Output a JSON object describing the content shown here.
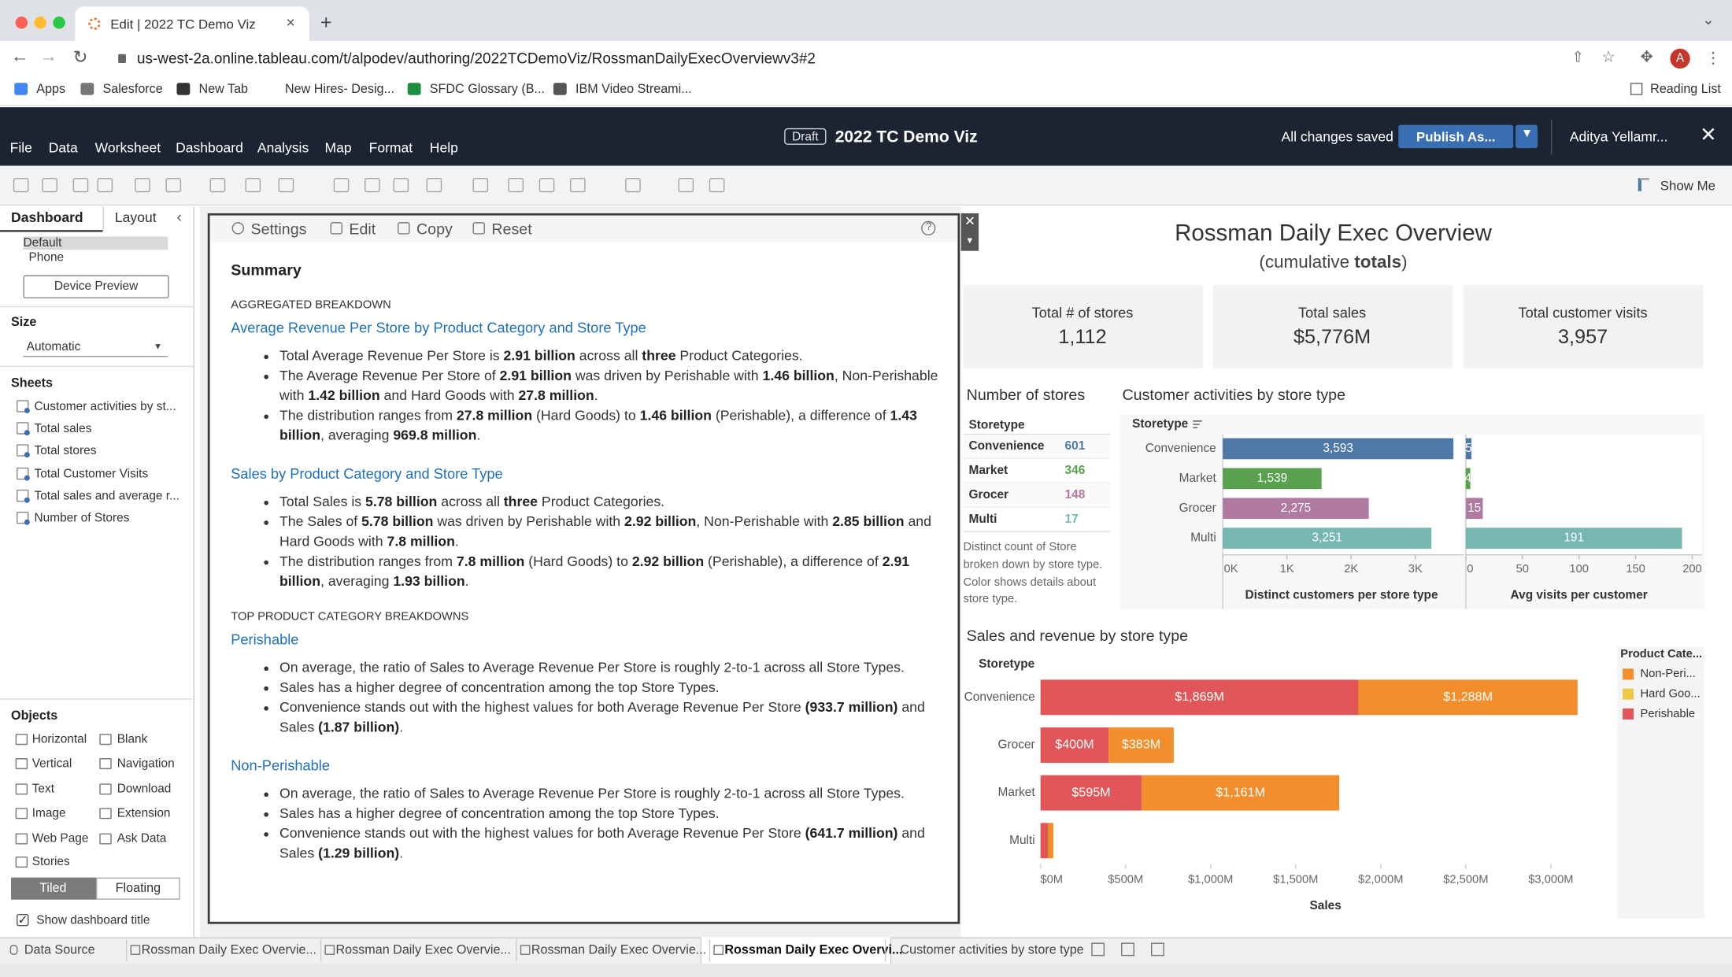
{
  "browser": {
    "tab_title": "Edit | 2022 TC Demo Viz",
    "url": "us-west-2a.online.tableau.com/t/alpodev/authoring/2022TCDemoViz/RossmanDailyExecOverviewv3#2",
    "avatar": "A",
    "bookmarks": [
      "Apps",
      "Salesforce",
      "New Tab",
      "New Hires- Desig...",
      "SFDC Glossary (B...",
      "IBM Video Streami..."
    ],
    "reading_list": "Reading List"
  },
  "app": {
    "menu": [
      "File",
      "Data",
      "Worksheet",
      "Dashboard",
      "Analysis",
      "Map",
      "Format",
      "Help"
    ],
    "badge": "Draft",
    "workbook": "2022 TC Demo Viz",
    "status": "All changes saved",
    "publish": "Publish As...",
    "user": "Aditya Yellamr...",
    "show_me": "Show Me"
  },
  "sidebar": {
    "tabs": [
      "Dashboard",
      "Layout"
    ],
    "devices": [
      "Default",
      "Phone"
    ],
    "device_preview": "Device Preview",
    "size_label": "Size",
    "size_value": "Automatic",
    "sheets_label": "Sheets",
    "sheets": [
      "Customer activities by st...",
      "Total sales",
      "Total stores",
      "Total Customer Visits",
      "Total sales and average r...",
      "Number of Stores"
    ],
    "objects_label": "Objects",
    "objects": [
      "Horizontal",
      "Blank",
      "Vertical",
      "Navigation",
      "Text",
      "Download",
      "Image",
      "Extension",
      "Web Page",
      "Ask Data",
      "Stories"
    ],
    "layout_modes": [
      "Tiled",
      "Floating"
    ],
    "show_title": "Show dashboard title"
  },
  "summary": {
    "actions": [
      "Settings",
      "Edit",
      "Copy",
      "Reset"
    ],
    "title": "Summary",
    "groups": [
      {
        "heading": "AGGREGATED BREAKDOWN",
        "sections": [
          {
            "title": "Average Revenue Per Store by Product Category and Store Type",
            "bullets": [
              [
                "Total Average Revenue Per Store is ",
                "2.91 billion",
                " across all ",
                "three",
                " Product Categories."
              ],
              [
                "The Average Revenue Per Store of ",
                "2.91 billion",
                " was driven by Perishable with ",
                "1.46 billion",
                ", Non-Perishable with ",
                "1.42 billion",
                " and Hard Goods with ",
                "27.8 million",
                "."
              ],
              [
                "The distribution ranges from ",
                "27.8 million",
                " (Hard Goods) to ",
                "1.46 billion",
                " (Perishable), a difference of ",
                "1.43 billion",
                ", averaging ",
                "969.8 million",
                "."
              ]
            ]
          },
          {
            "title": "Sales by Product Category and Store Type",
            "bullets": [
              [
                "Total Sales is ",
                "5.78 billion",
                " across all ",
                "three",
                " Product Categories."
              ],
              [
                "The Sales of ",
                "5.78 billion",
                " was driven by Perishable with ",
                "2.92 billion",
                ", Non-Perishable with ",
                "2.85 billion",
                " and Hard Goods with ",
                "7.8 million",
                "."
              ],
              [
                "The distribution ranges from ",
                "7.8 million",
                " (Hard Goods) to ",
                "2.92 billion",
                " (Perishable), a difference of ",
                "2.91 billion",
                ", averaging ",
                "1.93 billion",
                "."
              ]
            ]
          }
        ]
      },
      {
        "heading": "TOP PRODUCT CATEGORY BREAKDOWNS",
        "sections": [
          {
            "title": "Perishable",
            "bullets": [
              [
                "On average, the ratio of Sales to Average Revenue Per Store is roughly 2-to-1 across all Store Types."
              ],
              [
                "Sales has a higher degree of concentration among the top Store Types."
              ],
              [
                "Convenience stands out with the highest values for both Average Revenue Per Store ",
                "(933.7 million)",
                " and Sales ",
                "(1.87 billion)",
                "."
              ]
            ]
          },
          {
            "title": "Non-Perishable",
            "bullets": [
              [
                "On average, the ratio of Sales to Average Revenue Per Store is roughly 2-to-1 across all Store Types."
              ],
              [
                "Sales has a higher degree of concentration among the top Store Types."
              ],
              [
                "Convenience stands out with the highest values for both Average Revenue Per Store ",
                "(641.7 million)",
                " and Sales ",
                "(1.29 billion)",
                "."
              ]
            ]
          }
        ]
      }
    ]
  },
  "dashboard": {
    "title": "Rossman Daily Exec Overview",
    "subtitle": [
      "(cumulative ",
      "totals",
      ")"
    ],
    "kpis": [
      {
        "label": "Total # of stores",
        "value": "1,112"
      },
      {
        "label": "Total sales",
        "value": "$5,776M"
      },
      {
        "label": "Total customer visits",
        "value": "3,957"
      }
    ],
    "stores_table": {
      "title": "Number of stores",
      "header": "Storetype",
      "rows": [
        [
          "Convenience",
          "601"
        ],
        [
          "Market",
          "346"
        ],
        [
          "Grocer",
          "148"
        ],
        [
          "Multi",
          "17"
        ]
      ],
      "colors": [
        "#4e79a7",
        "#59a14f",
        "#b07aa1",
        "#76b7b2"
      ],
      "note": "Distinct count of Store broken down by store type. Color shows details about store type."
    },
    "customer_chart": {
      "type": "bar",
      "title": "Customer activities by store type",
      "header": "Storetype",
      "categories": [
        "Convenience",
        "Market",
        "Grocer",
        "Multi"
      ],
      "colors": [
        "#4e79a7",
        "#59a14f",
        "#b07aa1",
        "#76b7b2"
      ],
      "panels": [
        {
          "axis_title": "Distinct customers per store type",
          "values": [
            3593,
            1539,
            2275,
            3251
          ],
          "value_labels": [
            "3,593",
            "1,539",
            "2,275",
            "3,251"
          ],
          "xlim": [
            0,
            3700
          ],
          "xticks": [
            {
              "value": 0,
              "label": "0K"
            },
            {
              "value": 1000,
              "label": "1K"
            },
            {
              "value": 2000,
              "label": "2K"
            },
            {
              "value": 3000,
              "label": "3K"
            }
          ]
        },
        {
          "axis_title": "Avg visits per customer",
          "values": [
            5,
            4,
            15,
            191
          ],
          "xlim": [
            0,
            200
          ],
          "xticks": [
            0,
            50,
            100,
            150,
            200
          ]
        }
      ]
    },
    "sales_chart": {
      "type": "bar",
      "stacked": true,
      "title": "Sales and revenue by store type",
      "header": "Storetype",
      "categories": [
        "Convenience",
        "Grocer",
        "Market",
        "Multi"
      ],
      "legend_title": "Product Cate...",
      "series": [
        {
          "name": "Non-Peri...",
          "color": "#f28e2b",
          "values": [
            1288,
            383,
            1161,
            30
          ],
          "value_labels": [
            "$1,288M",
            "$383M",
            "$1,161M",
            null
          ]
        },
        {
          "name": "Hard Goo...",
          "color": "#edc948",
          "values": [
            null,
            null,
            null,
            null
          ]
        },
        {
          "name": "Perishable",
          "color": "#e15759",
          "values": [
            1869,
            400,
            595,
            45
          ],
          "value_labels": [
            "$1,869M",
            "$400M",
            "$595M",
            null
          ]
        }
      ],
      "xlabel": "Sales",
      "xlim": [
        0,
        3200
      ],
      "xticks": [
        {
          "value": 0,
          "label": "$0M"
        },
        {
          "value": 500,
          "label": "$500M"
        },
        {
          "value": 1000,
          "label": "$1,000M"
        },
        {
          "value": 1500,
          "label": "$1,500M"
        },
        {
          "value": 2000,
          "label": "$2,000M"
        },
        {
          "value": 2500,
          "label": "$2,500M"
        },
        {
          "value": 3000,
          "label": "$3,000M"
        }
      ]
    }
  },
  "sheet_tabs": [
    "Data Source",
    "Rossman Daily Exec Overvie...",
    "Rossman Daily Exec Overvie...",
    "Rossman Daily Exec Overvie...",
    "Rossman Daily Exec Overvi...",
    "Customer activities by store type"
  ]
}
